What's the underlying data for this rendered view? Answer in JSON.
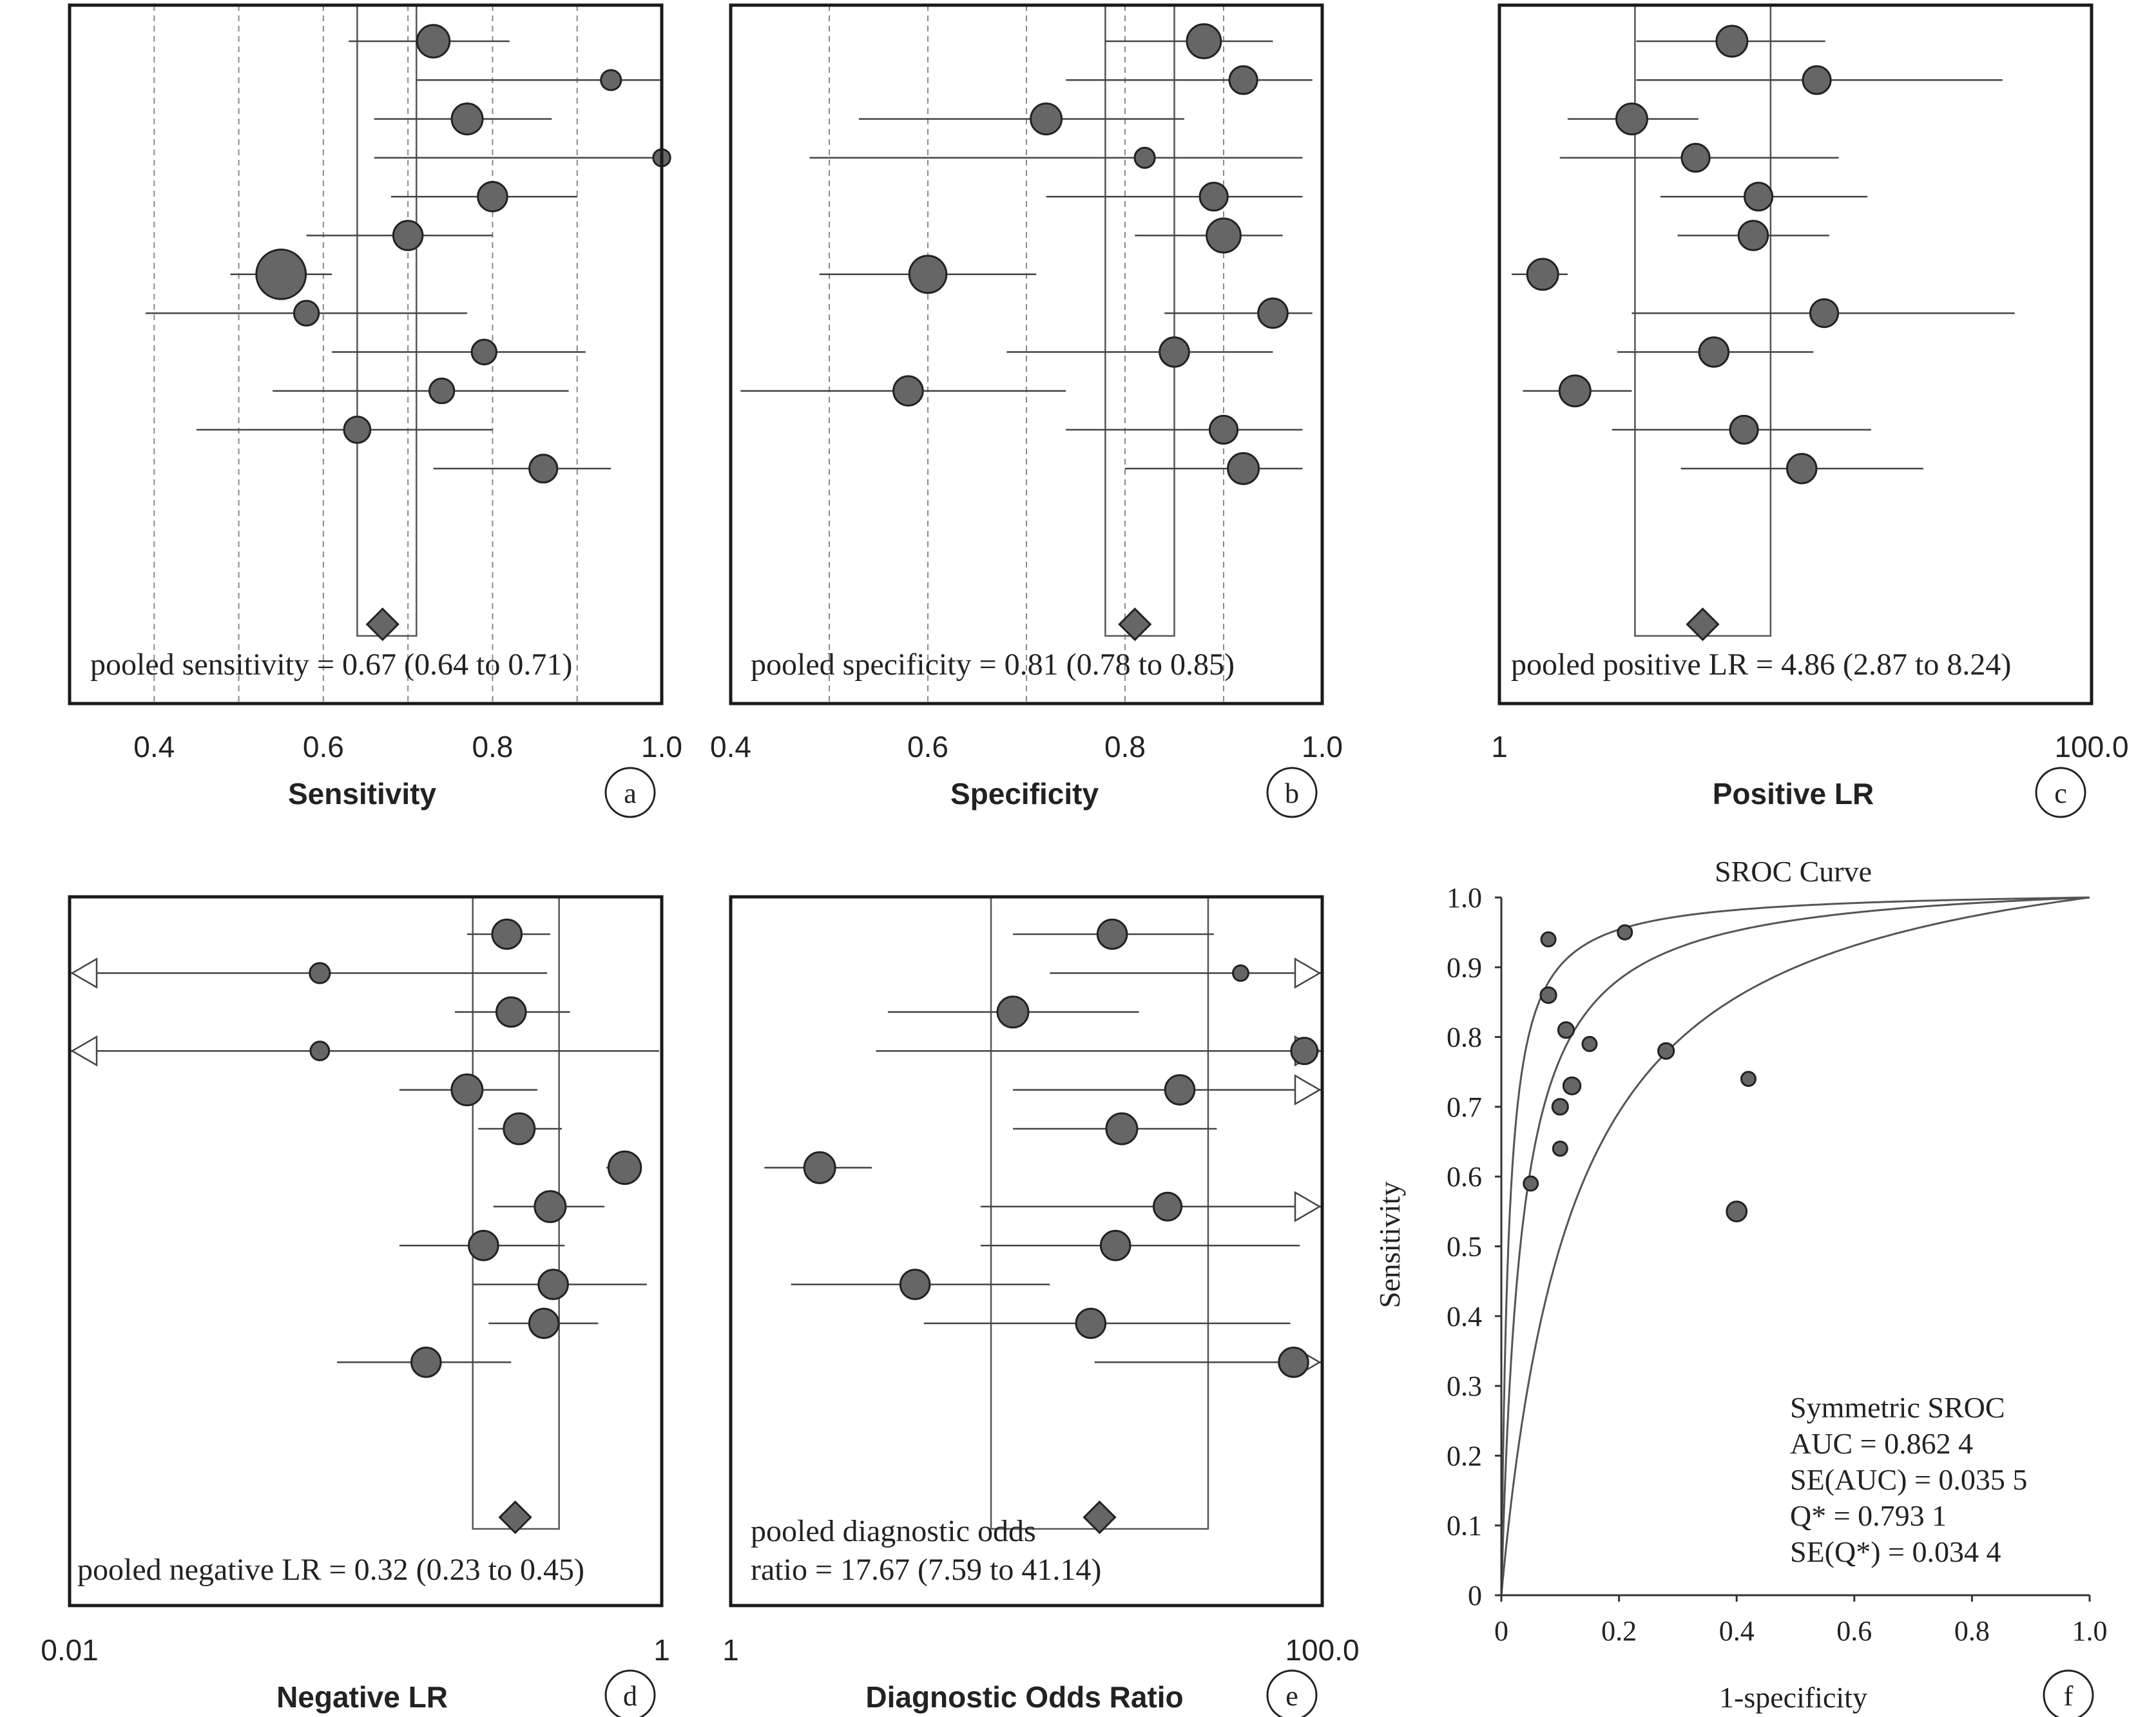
{
  "chart_data": [
    {
      "type": "forest",
      "panel": "a",
      "xlabel": "Sensitivity",
      "xlim": [
        0.3,
        1.0
      ],
      "scale": "linear",
      "ticks": [
        0.4,
        0.6,
        0.8,
        1.0
      ],
      "tick_labels": [
        "0.4",
        "0.6",
        "0.8",
        "1.0"
      ],
      "refs": [
        0.4,
        0.5,
        0.6,
        0.7,
        0.8,
        0.9
      ],
      "pooled": {
        "value": 0.67,
        "low": 0.64,
        "high": 0.71
      },
      "pooled_label": "pooled sensitivity = 0.67 (0.64 to 0.71)",
      "studies": [
        {
          "est": 0.73,
          "low": 0.63,
          "high": 0.82,
          "w": 2.1
        },
        {
          "est": 0.94,
          "low": 0.71,
          "high": 1.0,
          "w": 1.3
        },
        {
          "est": 0.77,
          "low": 0.66,
          "high": 0.87,
          "w": 2.0
        },
        {
          "est": 1.0,
          "low": 0.66,
          "high": 1.0,
          "w": 1.1
        },
        {
          "est": 0.8,
          "low": 0.68,
          "high": 0.9,
          "w": 1.9
        },
        {
          "est": 0.7,
          "low": 0.58,
          "high": 0.8,
          "w": 1.9
        },
        {
          "est": 0.55,
          "low": 0.49,
          "high": 0.61,
          "w": 3.2
        },
        {
          "est": 0.58,
          "low": 0.39,
          "high": 0.77,
          "w": 1.6
        },
        {
          "est": 0.79,
          "low": 0.61,
          "high": 0.91,
          "w": 1.6
        },
        {
          "est": 0.74,
          "low": 0.54,
          "high": 0.89,
          "w": 1.6
        },
        {
          "est": 0.64,
          "low": 0.45,
          "high": 0.8,
          "w": 1.7
        },
        {
          "est": 0.86,
          "low": 0.73,
          "high": 0.94,
          "w": 1.8
        }
      ]
    },
    {
      "type": "forest",
      "panel": "b",
      "xlabel": "Specificity",
      "xlim": [
        0.4,
        1.0
      ],
      "scale": "linear",
      "ticks": [
        0.4,
        0.6,
        0.8,
        1.0
      ],
      "tick_labels": [
        "0.4",
        "0.6",
        "0.8",
        "1.0"
      ],
      "refs": [
        0.5,
        0.6,
        0.7,
        0.8,
        0.9
      ],
      "pooled": {
        "value": 0.81,
        "low": 0.78,
        "high": 0.85
      },
      "pooled_label": "pooled specificity = 0.81 (0.78 to 0.85)",
      "studies": [
        {
          "est": 0.88,
          "low": 0.78,
          "high": 0.95,
          "w": 2.2
        },
        {
          "est": 0.92,
          "low": 0.74,
          "high": 0.99,
          "w": 1.8
        },
        {
          "est": 0.72,
          "low": 0.53,
          "high": 0.86,
          "w": 2.0
        },
        {
          "est": 0.82,
          "low": 0.48,
          "high": 0.98,
          "w": 1.3
        },
        {
          "est": 0.89,
          "low": 0.72,
          "high": 0.98,
          "w": 1.8
        },
        {
          "est": 0.9,
          "low": 0.81,
          "high": 0.96,
          "w": 2.2
        },
        {
          "est": 0.6,
          "low": 0.49,
          "high": 0.71,
          "w": 2.4
        },
        {
          "est": 0.95,
          "low": 0.84,
          "high": 0.99,
          "w": 1.9
        },
        {
          "est": 0.85,
          "low": 0.68,
          "high": 0.95,
          "w": 1.9
        },
        {
          "est": 0.58,
          "low": 0.41,
          "high": 0.74,
          "w": 1.9
        },
        {
          "est": 0.9,
          "low": 0.74,
          "high": 0.98,
          "w": 1.8
        },
        {
          "est": 0.92,
          "low": 0.8,
          "high": 0.98,
          "w": 2.0
        }
      ]
    },
    {
      "type": "forest",
      "panel": "c",
      "xlabel": "Positive LR",
      "xlim": [
        1,
        100
      ],
      "scale": "log",
      "ticks": [
        1,
        100
      ],
      "tick_labels": [
        "1",
        "100.0"
      ],
      "refs": [],
      "pooled": {
        "value": 4.86,
        "low": 2.87,
        "high": 8.24
      },
      "pooled_label": "pooled positive LR = 4.86 (2.87 to 8.24)",
      "studies": [
        {
          "est": 6.1,
          "low": 2.9,
          "high": 12.6,
          "w": 2.0
        },
        {
          "est": 11.8,
          "low": 2.9,
          "high": 50.0,
          "w": 1.8
        },
        {
          "est": 2.8,
          "low": 1.7,
          "high": 4.7,
          "w": 2.0
        },
        {
          "est": 4.6,
          "low": 1.6,
          "high": 14.0,
          "w": 1.8
        },
        {
          "est": 7.5,
          "low": 3.5,
          "high": 17.5,
          "w": 1.8
        },
        {
          "est": 7.2,
          "low": 4.0,
          "high": 13.0,
          "w": 1.9
        },
        {
          "est": 1.4,
          "low": 1.1,
          "high": 1.7,
          "w": 2.0
        },
        {
          "est": 12.5,
          "low": 2.8,
          "high": 55.0,
          "w": 1.8
        },
        {
          "est": 5.3,
          "low": 2.5,
          "high": 11.5,
          "w": 1.9
        },
        {
          "est": 1.8,
          "low": 1.2,
          "high": 2.8,
          "w": 2.0
        },
        {
          "est": 6.7,
          "low": 2.4,
          "high": 18.0,
          "w": 1.8
        },
        {
          "est": 10.5,
          "low": 4.1,
          "high": 27.0,
          "w": 1.9
        }
      ]
    },
    {
      "type": "forest",
      "panel": "d",
      "xlabel": "Negative LR",
      "xlim": [
        0.01,
        1
      ],
      "scale": "log",
      "ticks": [
        0.01,
        1
      ],
      "tick_labels": [
        "0.01",
        "1"
      ],
      "refs": [],
      "pooled": {
        "value": 0.32,
        "low": 0.23,
        "high": 0.45
      },
      "pooled_label": "pooled negative LR = 0.32 (0.23 to 0.45)",
      "studies": [
        {
          "est": 0.3,
          "low": 0.22,
          "high": 0.42,
          "w": 1.9
        },
        {
          "est": 0.07,
          "low": 0.01,
          "high": 0.41,
          "w": 1.3,
          "arrow_left": true
        },
        {
          "est": 0.31,
          "low": 0.2,
          "high": 0.49,
          "w": 1.9
        },
        {
          "est": 0.07,
          "low": 0.01,
          "high": 0.98,
          "w": 1.2,
          "arrow_left": true
        },
        {
          "est": 0.22,
          "low": 0.13,
          "high": 0.38,
          "w": 2.0
        },
        {
          "est": 0.33,
          "low": 0.24,
          "high": 0.46,
          "w": 2.0
        },
        {
          "est": 0.75,
          "low": 0.65,
          "high": 0.85,
          "w": 2.1
        },
        {
          "est": 0.42,
          "low": 0.27,
          "high": 0.64,
          "w": 2.0
        },
        {
          "est": 0.25,
          "low": 0.13,
          "high": 0.47,
          "w": 1.9
        },
        {
          "est": 0.43,
          "low": 0.23,
          "high": 0.89,
          "w": 1.9
        },
        {
          "est": 0.4,
          "low": 0.26,
          "high": 0.61,
          "w": 1.9
        },
        {
          "est": 0.16,
          "low": 0.08,
          "high": 0.31,
          "w": 1.9
        }
      ]
    },
    {
      "type": "forest",
      "panel": "e",
      "xlabel": "Diagnostic Odds Ratio",
      "xlim": [
        1,
        100
      ],
      "scale": "log",
      "ticks": [
        1,
        100
      ],
      "tick_labels": [
        "1",
        "100.0"
      ],
      "refs": [],
      "pooled": {
        "value": 17.67,
        "low": 7.59,
        "high": 41.14
      },
      "pooled_label_lines": [
        "pooled diagnostic odds",
        "ratio = 17.67 (7.59 to 41.14)"
      ],
      "studies": [
        {
          "est": 19.5,
          "low": 9.0,
          "high": 43.0,
          "w": 1.9
        },
        {
          "est": 53.0,
          "low": 12.0,
          "high": 100.0,
          "w": 1.0,
          "arrow_right": true
        },
        {
          "est": 9.0,
          "low": 3.4,
          "high": 24.0,
          "w": 2.0
        },
        {
          "est": 87.0,
          "low": 3.1,
          "high": 100.0,
          "w": 1.7,
          "arrow_right": true
        },
        {
          "est": 33.0,
          "low": 9.0,
          "high": 100.0,
          "w": 1.9,
          "arrow_right": true
        },
        {
          "est": 21.0,
          "low": 9.0,
          "high": 44.0,
          "w": 2.0
        },
        {
          "est": 2.0,
          "low": 1.3,
          "high": 3.0,
          "w": 2.0
        },
        {
          "est": 30.0,
          "low": 7.0,
          "high": 100.0,
          "w": 1.8,
          "arrow_right": true
        },
        {
          "est": 20.0,
          "low": 7.0,
          "high": 84.0,
          "w": 1.9
        },
        {
          "est": 4.2,
          "low": 1.6,
          "high": 12.0,
          "w": 1.9
        },
        {
          "est": 16.5,
          "low": 4.5,
          "high": 78.0,
          "w": 1.9
        },
        {
          "est": 80.0,
          "low": 17.0,
          "high": 100.0,
          "w": 1.9,
          "arrow_right": true
        }
      ]
    },
    {
      "type": "scatter",
      "panel": "f",
      "title": "SROC Curve",
      "xlabel": "1-specificity",
      "ylabel": "Sensitivity",
      "xlim": [
        0,
        1
      ],
      "ylim": [
        0,
        1
      ],
      "xticks": [
        0,
        0.2,
        0.4,
        0.6,
        0.8,
        1.0
      ],
      "xtick_labels": [
        "0",
        "0.2",
        "0.4",
        "0.6",
        "0.8",
        "1.0"
      ],
      "yticks": [
        0,
        0.1,
        0.2,
        0.3,
        0.4,
        0.5,
        0.6,
        0.7,
        0.8,
        0.9,
        1.0
      ],
      "ytick_labels": [
        "0",
        "0.1",
        "0.2",
        "0.3",
        "0.4",
        "0.5",
        "0.6",
        "0.7",
        "0.8",
        "0.9",
        "1.0"
      ],
      "curve_dor": [
        83,
        30,
        9
      ],
      "points": [
        {
          "x": 0.08,
          "y": 0.94,
          "w": 1.0
        },
        {
          "x": 0.21,
          "y": 0.95,
          "w": 1.0
        },
        {
          "x": 0.08,
          "y": 0.86,
          "w": 1.1
        },
        {
          "x": 0.11,
          "y": 0.81,
          "w": 1.1
        },
        {
          "x": 0.15,
          "y": 0.79,
          "w": 1.0
        },
        {
          "x": 0.28,
          "y": 0.78,
          "w": 1.1
        },
        {
          "x": 0.12,
          "y": 0.73,
          "w": 1.2
        },
        {
          "x": 0.1,
          "y": 0.7,
          "w": 1.1
        },
        {
          "x": 0.42,
          "y": 0.74,
          "w": 1.0
        },
        {
          "x": 0.1,
          "y": 0.64,
          "w": 1.0
        },
        {
          "x": 0.05,
          "y": 0.59,
          "w": 1.0
        },
        {
          "x": 0.4,
          "y": 0.55,
          "w": 1.4
        }
      ],
      "annotation_lines": [
        "Symmetric SROC",
        "AUC = 0.862 4",
        "SE(AUC) = 0.035 5",
        "Q* = 0.793 1",
        "SE(Q*) = 0.034 4"
      ]
    }
  ],
  "colors": {
    "point_fill": "#666666",
    "line": "#444444",
    "frame": "#1a1a1a",
    "ref": "#8a8a8a"
  }
}
